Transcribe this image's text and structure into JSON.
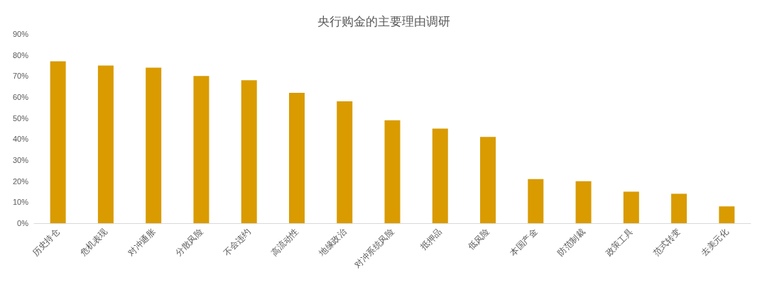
{
  "chart_data": {
    "type": "bar",
    "title": "央行购金的主要理由调研",
    "categories": [
      "历史持仓",
      "危机表现",
      "对冲通胀",
      "分散风险",
      "不会违约",
      "高流动性",
      "地缘政治",
      "对冲系统风险",
      "抵押品",
      "低风险",
      "本国产金",
      "防范制裁",
      "政策工具",
      "范式转变",
      "去美元化"
    ],
    "values": [
      77,
      75,
      74,
      70,
      68,
      62,
      58,
      49,
      45,
      41,
      21,
      20,
      15,
      14,
      8
    ],
    "color": "#d99b00",
    "ylim": [
      0,
      90
    ],
    "yticks": [
      {
        "value": 0,
        "label": "0%"
      },
      {
        "value": 10,
        "label": "10%"
      },
      {
        "value": 20,
        "label": "20%"
      },
      {
        "value": 30,
        "label": "30%"
      },
      {
        "value": 40,
        "label": "40%"
      },
      {
        "value": 50,
        "label": "50%"
      },
      {
        "value": 60,
        "label": "60%"
      },
      {
        "value": 70,
        "label": "70%"
      },
      {
        "value": 80,
        "label": "80%"
      },
      {
        "value": 90,
        "label": "90%"
      }
    ],
    "grid": false
  }
}
